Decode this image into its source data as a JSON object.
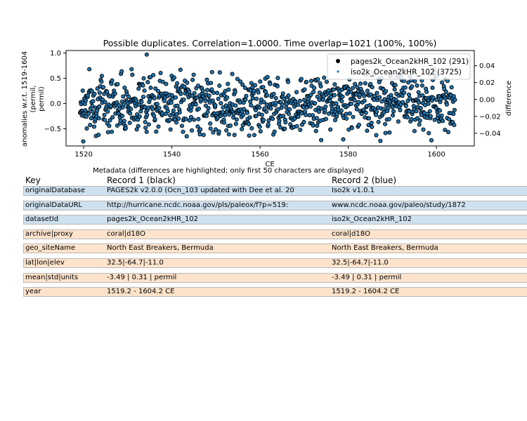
{
  "chart_data": {
    "type": "scatter",
    "title": "Possible duplicates. Correlation=1.0000. Time overlap=1021 (100%, 100%)",
    "xlabel": "CE",
    "ylabel": "anomalies w.r.t. 1519-1604\n(permil,\npermil)",
    "ylabel_right": "difference",
    "xlim": [
      1516.0,
      1608.6
    ],
    "ylim": [
      -0.84,
      1.05
    ],
    "ylim_right": [
      -0.055,
      0.058
    ],
    "xticks": [
      "1520",
      "1540",
      "1560",
      "1580",
      "1600"
    ],
    "yticks": [
      "1.0",
      "0.5",
      "0.0",
      "−0.5"
    ],
    "yticks_right": [
      "0.04",
      "0.02",
      "0.00",
      "−0.02",
      "−0.04"
    ],
    "x_range": [
      1519.2,
      1604.2
    ],
    "n_points": 1021,
    "series": [
      {
        "name": "pages2k_Ocean2kHR_102 (291)",
        "color": "#000000",
        "marker": "circle-large"
      },
      {
        "name": "iso2k_Ocean2kHR_102 (3725)",
        "color": "#1f77b4",
        "marker": "circle-small"
      }
    ],
    "annotated_points": [
      {
        "x": 1534.3,
        "y": 0.97
      },
      {
        "x": 1519.9,
        "y": -0.75
      },
      {
        "x": 1587.3,
        "y": -0.74
      }
    ],
    "legend_position": "top-right",
    "grid": false
  },
  "metadata": {
    "title": "Metadata (differences are highlighted; only first 50 characters are displayed)",
    "headers": {
      "key": "Key",
      "rec1": "Record 1 (black)",
      "rec2": "Record 2 (blue)"
    },
    "rows": [
      {
        "key": "originalDatabase",
        "r1": "PAGES2k v2.0.0 (Ocn_103 updated with Dee et al. 20",
        "r2": "Iso2k v1.0.1",
        "diff": true
      },
      {
        "key": "originalDataURL",
        "r1": "http://hurricane.ncdc.noaa.gov/pls/paleox/f?p=519:",
        "r2": "www.ncdc.noaa.gov/paleo/study/1872",
        "diff": true
      },
      {
        "key": "datasetId",
        "r1": "pages2k_Ocean2kHR_102",
        "r2": "iso2k_Ocean2kHR_102",
        "diff": true
      },
      {
        "key": "archive|proxy",
        "r1": "coral|d18O",
        "r2": "coral|d18O",
        "diff": false
      },
      {
        "key": "geo_siteName",
        "r1": "North East Breakers, Bermuda",
        "r2": "North East Breakers, Bermuda",
        "diff": false
      },
      {
        "key": "lat|lon|elev",
        "r1": "32.5|-64.7|-11.0",
        "r2": "32.5|-64.7|-11.0",
        "diff": false
      },
      {
        "key": "mean|std|units",
        "r1": "-3.49 | 0.31 | permil",
        "r2": "-3.49 | 0.31 | permil",
        "diff": false
      },
      {
        "key": "year",
        "r1": "1519.2 - 1604.2 CE",
        "r2": "1519.2 - 1604.2 CE",
        "diff": false
      }
    ]
  }
}
